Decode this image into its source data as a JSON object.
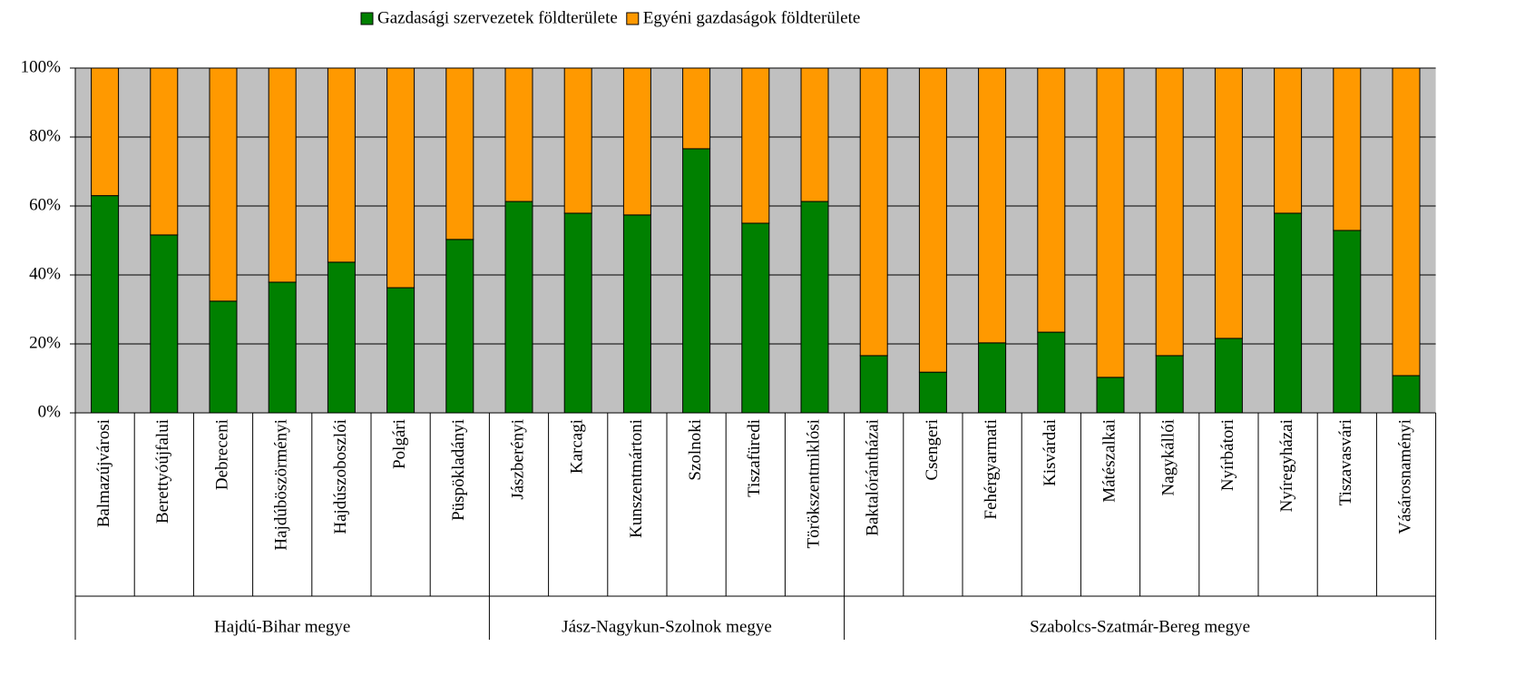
{
  "chart_data": {
    "type": "stacked_bar_100",
    "groups": [
      {
        "label": "Hajdú-Bihar megye",
        "categories": [
          "Balmazújvárosi",
          "Berettyóújfalui",
          "Debreceni",
          "Hajdúböszörményi",
          "Hajdúszoboszlói",
          "Polgári",
          "Püspökladányi"
        ]
      },
      {
        "label": "Jász-Nagykun-Szolnok megye",
        "categories": [
          "Jászberényi",
          "Karcagi",
          "Kunszentmártoni",
          "Szolnoki",
          "Tiszafüredi",
          "Törökszentmiklósi"
        ]
      },
      {
        "label": "Szabolcs-Szatmár-Bereg megye",
        "categories": [
          "Baktalórántházai",
          "Csengeri",
          "Fehérgyarmati",
          "Kisvárdai",
          "Mátészalkai",
          "Nagykállói",
          "Nyírbátori",
          "Nyíregyházai",
          "Tiszavasvári",
          "Vásárosnaményi"
        ]
      }
    ],
    "series": [
      {
        "name": "Gazdasági szervezetek földterülete",
        "color": "#008000",
        "values": [
          63,
          51.6,
          32.4,
          37.9,
          43.7,
          36.3,
          50.3,
          61.3,
          57.9,
          57.4,
          76.6,
          55,
          61.3,
          16.6,
          11.8,
          20.3,
          23.4,
          10.3,
          16.6,
          21.6,
          57.9,
          52.9,
          10.8
        ]
      },
      {
        "name": "Egyéni gazdaságok földterülete",
        "color": "#ff9900",
        "values": [
          37,
          48.4,
          67.6,
          62.1,
          56.3,
          63.7,
          49.7,
          38.7,
          42.1,
          42.6,
          23.4,
          45,
          38.7,
          83.4,
          88.2,
          79.7,
          76.6,
          89.7,
          83.4,
          78.4,
          42.1,
          47.1,
          89.2
        ]
      }
    ],
    "ylim": [
      0,
      100
    ],
    "yticks": [
      {
        "value": 0,
        "label": "0%"
      },
      {
        "value": 20,
        "label": "20%"
      },
      {
        "value": 40,
        "label": "40%"
      },
      {
        "value": 60,
        "label": "60%"
      },
      {
        "value": 80,
        "label": "80%"
      },
      {
        "value": 100,
        "label": "100%"
      }
    ],
    "grid": true,
    "legend": "top",
    "plot_background": "#c0c0c0"
  }
}
